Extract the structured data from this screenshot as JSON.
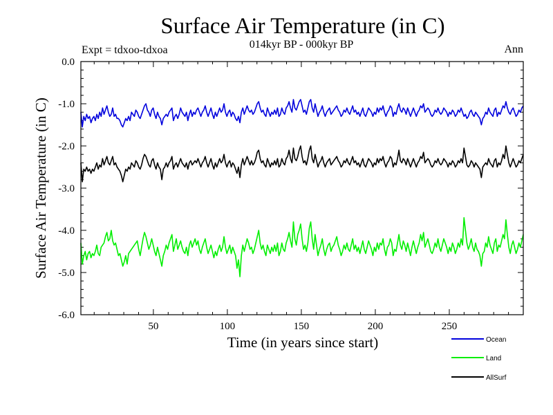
{
  "chart_data": {
    "type": "line",
    "title": "Surface Air Temperature (in C)",
    "subtitle": "014kyr BP - 000kyr BP",
    "left_note": "Expt = tdxoo-tdxoa",
    "right_note": "Ann",
    "xlabel": "Time (in years since start)",
    "ylabel": "Surface Air Temperature (in C)",
    "xlim": [
      1,
      300
    ],
    "ylim": [
      -6.0,
      0.0
    ],
    "x_ticks": [
      50,
      100,
      150,
      200,
      250
    ],
    "x_tick_labels": [
      "50",
      "100",
      "150",
      "200",
      "250"
    ],
    "y_ticks": [
      0.0,
      -1.0,
      -2.0,
      -3.0,
      -4.0,
      -5.0,
      -6.0
    ],
    "y_tick_labels": [
      "0.0",
      "-1.0",
      "-2.0",
      "-3.0",
      "-4.0",
      "-5.0",
      "-6.0"
    ],
    "grid": false,
    "legend_position": "bottom-right, below plot",
    "series": [
      {
        "name": "Ocean",
        "color": "#0000dd",
        "values": [
          -1.2,
          -1.55,
          -1.3,
          -1.4,
          -1.25,
          -1.35,
          -1.3,
          -1.45,
          -1.35,
          -1.3,
          -1.4,
          -1.25,
          -1.35,
          -1.2,
          -1.3,
          -1.1,
          -1.25,
          -1.15,
          -1.05,
          -1.2,
          -1.3,
          -1.25,
          -1.1,
          -1.3,
          -1.25,
          -1.35,
          -1.35,
          -1.4,
          -1.5,
          -1.55,
          -1.45,
          -1.35,
          -1.4,
          -1.3,
          -1.4,
          -1.2,
          -1.25,
          -1.3,
          -1.15,
          -1.2,
          -1.3,
          -1.35,
          -1.25,
          -1.15,
          -1.05,
          -1.0,
          -1.15,
          -1.2,
          -1.3,
          -1.15,
          -1.1,
          -1.25,
          -1.35,
          -1.2,
          -1.3,
          -1.35,
          -1.5,
          -1.35,
          -1.3,
          -1.25,
          -1.3,
          -1.2,
          -1.15,
          -1.1,
          -1.4,
          -1.3,
          -1.25,
          -1.35,
          -1.25,
          -1.1,
          -1.2,
          -1.25,
          -1.3,
          -1.2,
          -1.4,
          -1.25,
          -1.15,
          -1.3,
          -1.2,
          -1.25,
          -1.15,
          -1.1,
          -1.2,
          -1.3,
          -1.2,
          -1.15,
          -1.05,
          -1.2,
          -1.3,
          -1.2,
          -1.1,
          -1.25,
          -1.35,
          -1.2,
          -1.3,
          -1.2,
          -1.1,
          -1.2,
          -1.15,
          -1.0,
          -1.2,
          -1.3,
          -1.2,
          -1.15,
          -1.3,
          -1.2,
          -1.25,
          -1.35,
          -1.4,
          -1.3,
          -1.45,
          -1.2,
          -1.1,
          -1.25,
          -1.15,
          -1.05,
          -1.15,
          -1.2,
          -1.15,
          -1.25,
          -1.2,
          -1.1,
          -1.0,
          -0.95,
          -1.1,
          -1.2,
          -1.15,
          -1.25,
          -1.3,
          -1.1,
          -1.2,
          -1.3,
          -1.2,
          -1.25,
          -1.15,
          -1.25,
          -1.1,
          -1.3,
          -1.25,
          -1.1,
          -1.2,
          -1.25,
          -1.1,
          -1.05,
          -0.95,
          -1.1,
          -1.2,
          -0.9,
          -1.1,
          -1.15,
          -1.05,
          -0.95,
          -0.9,
          -1.05,
          -1.2,
          -1.15,
          -1.25,
          -1.1,
          -0.95,
          -0.9,
          -1.1,
          -1.2,
          -1.0,
          -1.15,
          -1.3,
          -1.2,
          -1.15,
          -1.05,
          -1.2,
          -1.3,
          -1.2,
          -1.15,
          -1.1,
          -1.25,
          -1.2,
          -1.15,
          -1.1,
          -1.05,
          -1.15,
          -1.2,
          -1.3,
          -1.25,
          -1.15,
          -1.2,
          -1.1,
          -1.2,
          -1.25,
          -1.15,
          -1.05,
          -1.2,
          -1.15,
          -1.25,
          -1.2,
          -1.3,
          -1.2,
          -1.1,
          -1.25,
          -1.3,
          -1.2,
          -1.1,
          -1.15,
          -1.2,
          -1.3,
          -1.2,
          -1.25,
          -1.1,
          -1.2,
          -1.1,
          -1.15,
          -1.05,
          -1.2,
          -1.3,
          -1.2,
          -1.15,
          -1.05,
          -1.1,
          -1.3,
          -1.2,
          -1.25,
          -1.1,
          -1.0,
          -1.15,
          -1.2,
          -1.1,
          -1.15,
          -1.25,
          -1.1,
          -1.2,
          -1.3,
          -1.2,
          -1.1,
          -1.2,
          -1.3,
          -1.2,
          -1.15,
          -1.05,
          -1.1,
          -1.0,
          -1.2,
          -1.15,
          -1.1,
          -1.15,
          -1.25,
          -1.3,
          -1.25,
          -1.15,
          -1.2,
          -1.1,
          -1.2,
          -1.25,
          -1.2,
          -1.1,
          -1.15,
          -1.2,
          -1.3,
          -1.2,
          -1.25,
          -1.15,
          -1.2,
          -1.3,
          -1.25,
          -1.15,
          -1.2,
          -1.1,
          -1.2,
          -1.3,
          -1.25,
          -1.35,
          -1.3,
          -1.2,
          -1.15,
          -1.25,
          -1.3,
          -1.2,
          -1.25,
          -1.3,
          -1.35,
          -1.5,
          -1.35,
          -1.3,
          -1.2,
          -1.25,
          -1.1,
          -1.2,
          -1.25,
          -1.3,
          -1.15,
          -1.1,
          -1.3,
          -1.2,
          -1.25,
          -1.15,
          -1.05,
          -1.1,
          -0.95,
          -1.1,
          -1.2,
          -1.25,
          -1.15,
          -1.1,
          -1.2,
          -1.3,
          -1.25,
          -1.15,
          -1.2,
          -1.1,
          -1.05
        ]
      },
      {
        "name": "Land",
        "color": "#00ee00",
        "values": [
          -4.3,
          -4.8,
          -4.6,
          -4.5,
          -4.7,
          -4.55,
          -4.5,
          -4.65,
          -4.55,
          -4.6,
          -4.5,
          -4.35,
          -4.55,
          -4.6,
          -4.4,
          -4.35,
          -4.3,
          -4.15,
          -4.05,
          -4.25,
          -4.2,
          -4.0,
          -4.25,
          -4.35,
          -4.3,
          -4.45,
          -4.6,
          -4.55,
          -4.7,
          -4.85,
          -4.75,
          -4.6,
          -4.8,
          -4.55,
          -4.5,
          -4.45,
          -4.4,
          -4.35,
          -4.3,
          -4.25,
          -4.45,
          -4.6,
          -4.4,
          -4.2,
          -4.05,
          -4.15,
          -4.3,
          -4.45,
          -4.35,
          -4.2,
          -4.35,
          -4.5,
          -4.6,
          -4.4,
          -4.55,
          -4.7,
          -4.85,
          -4.6,
          -4.5,
          -4.35,
          -4.45,
          -4.3,
          -4.2,
          -4.1,
          -4.5,
          -4.35,
          -4.2,
          -4.45,
          -4.35,
          -4.25,
          -4.4,
          -4.5,
          -4.55,
          -4.4,
          -4.6,
          -4.35,
          -4.25,
          -4.4,
          -4.3,
          -4.2,
          -4.35,
          -4.25,
          -4.45,
          -4.55,
          -4.4,
          -4.3,
          -4.2,
          -4.4,
          -4.55,
          -4.45,
          -4.35,
          -4.5,
          -4.65,
          -4.5,
          -4.6,
          -4.45,
          -4.35,
          -4.5,
          -4.4,
          -4.15,
          -4.4,
          -4.55,
          -4.45,
          -4.35,
          -4.55,
          -4.4,
          -4.5,
          -4.6,
          -4.9,
          -4.7,
          -5.1,
          -4.6,
          -4.35,
          -4.5,
          -4.35,
          -4.2,
          -4.3,
          -4.45,
          -4.4,
          -4.55,
          -4.45,
          -4.3,
          -4.15,
          -4.0,
          -4.3,
          -4.45,
          -4.35,
          -4.5,
          -4.6,
          -4.35,
          -4.45,
          -4.55,
          -4.4,
          -4.5,
          -4.35,
          -4.5,
          -4.3,
          -4.6,
          -4.5,
          -4.3,
          -4.45,
          -4.5,
          -4.3,
          -4.2,
          -4.05,
          -4.25,
          -4.4,
          -3.8,
          -4.2,
          -4.35,
          -4.1,
          -4.0,
          -3.85,
          -4.2,
          -4.45,
          -4.35,
          -4.5,
          -4.3,
          -3.95,
          -3.8,
          -4.2,
          -4.45,
          -4.1,
          -4.35,
          -4.6,
          -4.45,
          -4.35,
          -4.2,
          -4.45,
          -4.6,
          -4.45,
          -4.35,
          -4.3,
          -4.5,
          -4.4,
          -4.35,
          -4.25,
          -4.15,
          -4.35,
          -4.45,
          -4.6,
          -4.5,
          -4.35,
          -4.45,
          -4.3,
          -4.45,
          -4.5,
          -4.35,
          -4.2,
          -4.45,
          -4.35,
          -4.5,
          -4.4,
          -4.55,
          -4.4,
          -4.25,
          -4.45,
          -4.55,
          -4.4,
          -4.25,
          -4.35,
          -4.45,
          -4.6,
          -4.4,
          -4.5,
          -4.3,
          -4.45,
          -4.3,
          -4.35,
          -4.2,
          -4.45,
          -4.6,
          -4.4,
          -4.35,
          -4.2,
          -4.3,
          -4.6,
          -4.45,
          -4.5,
          -4.3,
          -4.1,
          -4.35,
          -4.45,
          -4.25,
          -4.35,
          -4.5,
          -4.3,
          -4.45,
          -4.6,
          -4.4,
          -4.25,
          -4.4,
          -4.55,
          -4.4,
          -4.3,
          -4.1,
          -4.25,
          -4.05,
          -4.4,
          -4.3,
          -4.2,
          -4.35,
          -4.5,
          -4.55,
          -4.45,
          -4.3,
          -4.4,
          -4.2,
          -4.4,
          -4.5,
          -4.35,
          -4.2,
          -4.3,
          -4.4,
          -4.55,
          -4.4,
          -4.5,
          -4.3,
          -4.4,
          -4.55,
          -4.45,
          -4.3,
          -4.4,
          -4.2,
          -4.35,
          -3.7,
          -4.0,
          -4.3,
          -4.45,
          -4.35,
          -4.2,
          -4.4,
          -4.5,
          -4.3,
          -4.45,
          -4.5,
          -4.6,
          -4.85,
          -4.55,
          -4.5,
          -4.3,
          -4.4,
          -4.15,
          -4.35,
          -4.45,
          -4.55,
          -4.3,
          -4.2,
          -4.5,
          -4.35,
          -4.4,
          -4.25,
          -4.1,
          -4.2,
          -3.75,
          -4.1,
          -4.4,
          -4.55,
          -4.35,
          -4.25,
          -4.4,
          -4.55,
          -4.45,
          -4.3,
          -4.4,
          -4.25,
          -4.1
        ]
      },
      {
        "name": "AllSurf",
        "color": "#000000",
        "values": [
          -2.4,
          -2.85,
          -2.55,
          -2.6,
          -2.5,
          -2.6,
          -2.55,
          -2.65,
          -2.55,
          -2.6,
          -2.5,
          -2.4,
          -2.55,
          -2.45,
          -2.5,
          -2.3,
          -2.45,
          -2.35,
          -2.25,
          -2.4,
          -2.45,
          -2.35,
          -2.25,
          -2.45,
          -2.4,
          -2.5,
          -2.55,
          -2.6,
          -2.7,
          -2.85,
          -2.7,
          -2.55,
          -2.6,
          -2.5,
          -2.55,
          -2.4,
          -2.45,
          -2.5,
          -2.35,
          -2.4,
          -2.5,
          -2.55,
          -2.45,
          -2.3,
          -2.2,
          -2.25,
          -2.35,
          -2.45,
          -2.5,
          -2.35,
          -2.3,
          -2.45,
          -2.55,
          -2.4,
          -2.5,
          -2.55,
          -2.8,
          -2.55,
          -2.5,
          -2.4,
          -2.5,
          -2.4,
          -2.35,
          -2.25,
          -2.55,
          -2.45,
          -2.4,
          -2.5,
          -2.4,
          -2.3,
          -2.4,
          -2.45,
          -2.5,
          -2.4,
          -2.55,
          -2.4,
          -2.35,
          -2.45,
          -2.4,
          -2.35,
          -2.4,
          -2.3,
          -2.4,
          -2.5,
          -2.4,
          -2.35,
          -2.25,
          -2.4,
          -2.5,
          -2.4,
          -2.3,
          -2.45,
          -2.55,
          -2.4,
          -2.5,
          -2.4,
          -2.3,
          -2.4,
          -2.35,
          -2.2,
          -2.4,
          -2.5,
          -2.4,
          -2.35,
          -2.5,
          -2.4,
          -2.45,
          -2.55,
          -2.65,
          -2.5,
          -2.75,
          -2.45,
          -2.3,
          -2.45,
          -2.35,
          -2.25,
          -2.35,
          -2.45,
          -2.35,
          -2.45,
          -2.4,
          -2.3,
          -2.15,
          -2.1,
          -2.3,
          -2.4,
          -2.35,
          -2.45,
          -2.5,
          -2.3,
          -2.4,
          -2.5,
          -2.4,
          -2.45,
          -2.35,
          -2.45,
          -2.3,
          -2.5,
          -2.45,
          -2.3,
          -2.4,
          -2.45,
          -2.3,
          -2.25,
          -2.1,
          -2.3,
          -2.4,
          -2.05,
          -2.3,
          -2.35,
          -2.25,
          -2.1,
          -2.0,
          -2.25,
          -2.4,
          -2.35,
          -2.45,
          -2.3,
          -2.1,
          -2.0,
          -2.3,
          -2.4,
          -2.2,
          -2.35,
          -2.5,
          -2.4,
          -2.35,
          -2.25,
          -2.4,
          -2.5,
          -2.4,
          -2.35,
          -2.3,
          -2.45,
          -2.4,
          -2.35,
          -2.3,
          -2.25,
          -2.35,
          -2.4,
          -2.5,
          -2.45,
          -2.35,
          -2.4,
          -2.3,
          -2.4,
          -2.45,
          -2.35,
          -2.25,
          -2.4,
          -2.35,
          -2.45,
          -2.4,
          -2.5,
          -2.4,
          -2.3,
          -2.45,
          -2.5,
          -2.4,
          -2.3,
          -2.35,
          -2.4,
          -2.5,
          -2.4,
          -2.45,
          -2.3,
          -2.4,
          -2.3,
          -2.35,
          -2.25,
          -2.4,
          -2.5,
          -2.4,
          -2.35,
          -2.25,
          -2.3,
          -2.5,
          -2.4,
          -2.45,
          -2.3,
          -2.1,
          -2.35,
          -2.4,
          -2.3,
          -2.35,
          -2.45,
          -2.3,
          -2.4,
          -2.5,
          -2.4,
          -2.3,
          -2.4,
          -2.5,
          -2.4,
          -2.35,
          -2.25,
          -2.3,
          -2.15,
          -2.4,
          -2.35,
          -2.3,
          -2.35,
          -2.45,
          -2.5,
          -2.45,
          -2.35,
          -2.4,
          -2.3,
          -2.4,
          -2.45,
          -2.4,
          -2.3,
          -2.35,
          -2.4,
          -2.5,
          -2.4,
          -2.45,
          -2.35,
          -2.4,
          -2.5,
          -2.45,
          -2.35,
          -2.4,
          -2.3,
          -2.4,
          -2.05,
          -2.25,
          -2.45,
          -2.5,
          -2.45,
          -2.35,
          -2.4,
          -2.5,
          -2.4,
          -2.45,
          -2.5,
          -2.55,
          -2.75,
          -2.5,
          -2.45,
          -2.4,
          -2.45,
          -2.3,
          -2.4,
          -2.45,
          -2.5,
          -2.35,
          -2.3,
          -2.5,
          -2.4,
          -2.45,
          -2.35,
          -2.2,
          -2.3,
          -2.0,
          -2.2,
          -2.4,
          -2.5,
          -2.4,
          -2.3,
          -2.4,
          -2.5,
          -2.45,
          -2.35,
          -2.4,
          -2.3,
          -2.2
        ]
      }
    ]
  }
}
